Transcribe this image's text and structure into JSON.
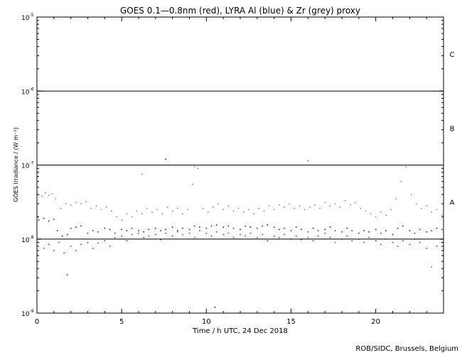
{
  "chart_data": {
    "type": "scatter",
    "title": "GOES 0.1—0.8nm (red), LYRA Al (blue) & Zr (grey) proxy",
    "xlabel": "Time / h UTC, 24 Dec 2018",
    "ylabel": "GOES Irradiance / (W m⁻²)",
    "footer": "ROB/SIDC, Brussels, Belgium",
    "y_scale": "log",
    "xlim": [
      0,
      24
    ],
    "ylim": [
      1e-09,
      1e-05
    ],
    "x_ticks": [
      {
        "value": 0,
        "label": "0"
      },
      {
        "value": 5,
        "label": "5"
      },
      {
        "value": 10,
        "label": "10"
      },
      {
        "value": 15,
        "label": "15"
      },
      {
        "value": 20,
        "label": "20"
      }
    ],
    "y_ticks": [
      {
        "exp": -9,
        "label": "10",
        "sup": "-9"
      },
      {
        "exp": -8,
        "label": "10",
        "sup": "-8"
      },
      {
        "exp": -7,
        "label": "10",
        "sup": "-7"
      },
      {
        "exp": -6,
        "label": "10",
        "sup": "-6"
      },
      {
        "exp": -5,
        "label": "10",
        "sup": "-5"
      }
    ],
    "flare_class_lines": [
      {
        "value": 1e-06,
        "label": "B"
      },
      {
        "value": 1e-07,
        "label": "A"
      },
      {
        "value": 1e-08,
        "label": ""
      }
    ],
    "flare_class_labels": [
      {
        "label": "C",
        "at": 3.16e-06
      },
      {
        "label": "B",
        "at": 3.16e-07
      },
      {
        "label": "A",
        "at": 3.16e-08
      }
    ],
    "series": [
      {
        "name": "GOES 0.1—0.8nm",
        "color": "#ff0000",
        "points": [
          [
            0.1,
            9e-09
          ],
          [
            0.4,
            7.5e-09
          ],
          [
            0.7,
            8.5e-09
          ],
          [
            1,
            7e-09
          ],
          [
            1.3,
            9e-09
          ],
          [
            1.6,
            6.5e-09
          ],
          [
            1.8,
            3.3e-09
          ],
          [
            2,
            8e-09
          ],
          [
            2.3,
            7e-09
          ],
          [
            2.6,
            8.5e-09
          ],
          [
            3,
            9e-09
          ],
          [
            3.3,
            7.5e-09
          ],
          [
            3.6,
            8.8e-09
          ],
          [
            4,
            9.5e-09
          ],
          [
            4.3,
            8e-09
          ],
          [
            4.6,
            1.05e-08
          ],
          [
            5,
            1.1e-08
          ],
          [
            5.3,
            9.5e-09
          ],
          [
            5.6,
            1.15e-08
          ],
          [
            6,
            1.2e-08
          ],
          [
            6.3,
            1.05e-08
          ],
          [
            6.6,
            1.1e-08
          ],
          [
            7,
            1.15e-08
          ],
          [
            7.3,
            9.8e-09
          ],
          [
            7.6,
            1.2e-08
          ],
          [
            8,
            1.1e-08
          ],
          [
            8.3,
            1.25e-08
          ],
          [
            8.6,
            1.15e-08
          ],
          [
            9,
            1.2e-08
          ],
          [
            9.3,
            1.05e-08
          ],
          [
            9.6,
            1.3e-08
          ],
          [
            10,
            1.2e-08
          ],
          [
            10.3,
            1.1e-08
          ],
          [
            10.6,
            1.25e-08
          ],
          [
            11,
            1.15e-08
          ],
          [
            11.3,
            1.2e-08
          ],
          [
            11.6,
            1.05e-08
          ],
          [
            12,
            1.15e-08
          ],
          [
            12.3,
            1.1e-08
          ],
          [
            12.6,
            1.2e-08
          ],
          [
            13,
            1.05e-08
          ],
          [
            13.3,
            1.15e-08
          ],
          [
            13.6,
            9.5e-09
          ],
          [
            14,
            1.1e-08
          ],
          [
            14.3,
            1.05e-08
          ],
          [
            14.6,
            1.15e-08
          ],
          [
            15,
            1e-08
          ],
          [
            15.3,
            1.1e-08
          ],
          [
            15.6,
            9.8e-09
          ],
          [
            16,
            1.05e-08
          ],
          [
            16.3,
            9.5e-09
          ],
          [
            16.6,
            1.1e-08
          ],
          [
            17,
            1.2e-08
          ],
          [
            17.3,
            1.05e-08
          ],
          [
            17.6,
            9e-09
          ],
          [
            18,
            1e-08
          ],
          [
            18.3,
            1.1e-08
          ],
          [
            18.6,
            9.5e-09
          ],
          [
            19,
            1e-08
          ],
          [
            19.3,
            9e-09
          ],
          [
            19.6,
            1.05e-08
          ],
          [
            20,
            9.5e-09
          ],
          [
            20.3,
            8.5e-09
          ],
          [
            20.6,
            1e-08
          ],
          [
            21,
            9e-09
          ],
          [
            21.3,
            8e-09
          ],
          [
            21.6,
            9.5e-09
          ],
          [
            22,
            8.5e-09
          ],
          [
            22.3,
            1e-08
          ],
          [
            22.6,
            9e-09
          ],
          [
            23,
            7.5e-09
          ],
          [
            23.3,
            4.2e-09
          ],
          [
            23.6,
            8e-09
          ],
          [
            23.9,
            9e-09
          ]
        ]
      },
      {
        "name": "LYRA Al",
        "color": "#0000ff",
        "points": [
          [
            0.1,
            1.8e-08
          ],
          [
            0.4,
            1.9e-08
          ],
          [
            0.7,
            1.75e-08
          ],
          [
            1,
            1.85e-08
          ],
          [
            1.2,
            1.3e-08
          ],
          [
            1.5,
            1.1e-08
          ],
          [
            1.8,
            1.15e-08
          ],
          [
            2,
            1.4e-08
          ],
          [
            2.3,
            1.45e-08
          ],
          [
            2.6,
            1.5e-08
          ],
          [
            3,
            1.2e-08
          ],
          [
            3.3,
            1.3e-08
          ],
          [
            3.6,
            1.25e-08
          ],
          [
            4,
            1.4e-08
          ],
          [
            4.3,
            1.35e-08
          ],
          [
            4.6,
            1.2e-08
          ],
          [
            5,
            1.35e-08
          ],
          [
            5.3,
            1.3e-08
          ],
          [
            5.6,
            1.4e-08
          ],
          [
            6,
            1.3e-08
          ],
          [
            6.3,
            1.25e-08
          ],
          [
            6.6,
            1.35e-08
          ],
          [
            7,
            1.4e-08
          ],
          [
            7.3,
            1.3e-08
          ],
          [
            7.6,
            1.35e-08
          ],
          [
            8,
            1.45e-08
          ],
          [
            8.3,
            1.3e-08
          ],
          [
            8.6,
            1.4e-08
          ],
          [
            9,
            1.35e-08
          ],
          [
            9.3,
            1.5e-08
          ],
          [
            9.6,
            1.45e-08
          ],
          [
            10,
            1.4e-08
          ],
          [
            10.3,
            1.5e-08
          ],
          [
            10.6,
            1.55e-08
          ],
          [
            11,
            1.45e-08
          ],
          [
            11.3,
            1.5e-08
          ],
          [
            11.6,
            1.4e-08
          ],
          [
            12,
            1.35e-08
          ],
          [
            12.3,
            1.5e-08
          ],
          [
            12.6,
            1.45e-08
          ],
          [
            13,
            1.4e-08
          ],
          [
            13.3,
            1.5e-08
          ],
          [
            13.6,
            1.55e-08
          ],
          [
            14,
            1.45e-08
          ],
          [
            14.3,
            1.35e-08
          ],
          [
            14.6,
            1.4e-08
          ],
          [
            15,
            1.3e-08
          ],
          [
            15.3,
            1.45e-08
          ],
          [
            15.6,
            1.35e-08
          ],
          [
            16,
            1.25e-08
          ],
          [
            16.3,
            1.4e-08
          ],
          [
            16.6,
            1.3e-08
          ],
          [
            17,
            1.35e-08
          ],
          [
            17.3,
            1.45e-08
          ],
          [
            17.6,
            1.3e-08
          ],
          [
            18,
            1.25e-08
          ],
          [
            18.3,
            1.4e-08
          ],
          [
            18.6,
            1.3e-08
          ],
          [
            19,
            1.2e-08
          ],
          [
            19.3,
            1.3e-08
          ],
          [
            19.6,
            1.25e-08
          ],
          [
            20,
            1.35e-08
          ],
          [
            20.3,
            1.2e-08
          ],
          [
            20.6,
            1.3e-08
          ],
          [
            21,
            1.15e-08
          ],
          [
            21.3,
            1.4e-08
          ],
          [
            21.6,
            1.5e-08
          ],
          [
            22,
            1.3e-08
          ],
          [
            22.3,
            1.2e-08
          ],
          [
            22.6,
            1.35e-08
          ],
          [
            23,
            1.25e-08
          ],
          [
            23.3,
            1.3e-08
          ],
          [
            23.6,
            1.4e-08
          ],
          [
            23.9,
            1.35e-08
          ],
          [
            7.6,
            1.2e-07
          ],
          [
            10.5,
            1.2e-09
          ]
        ]
      },
      {
        "name": "LYRA Zr",
        "color": "#808080",
        "points": [
          [
            0.1,
            4e-08
          ],
          [
            0.3,
            3.8e-08
          ],
          [
            0.5,
            4.2e-08
          ],
          [
            0.7,
            3.9e-08
          ],
          [
            0.9,
            4.1e-08
          ],
          [
            1.1,
            3.5e-08
          ],
          [
            1.4,
            2.6e-08
          ],
          [
            1.7,
            3e-08
          ],
          [
            2,
            2.9e-08
          ],
          [
            2.3,
            3.1e-08
          ],
          [
            2.6,
            3e-08
          ],
          [
            2.9,
            3.2e-08
          ],
          [
            3.2,
            2.6e-08
          ],
          [
            3.5,
            2.8e-08
          ],
          [
            3.8,
            2.5e-08
          ],
          [
            4.1,
            2.7e-08
          ],
          [
            4.4,
            2.4e-08
          ],
          [
            4.7,
            2e-08
          ],
          [
            5,
            1.8e-08
          ],
          [
            5.3,
            2.2e-08
          ],
          [
            5.6,
            2e-08
          ],
          [
            5.9,
            2.4e-08
          ],
          [
            6.2,
            2.2e-08
          ],
          [
            6.5,
            2.6e-08
          ],
          [
            6.8,
            2.3e-08
          ],
          [
            7.1,
            2.5e-08
          ],
          [
            7.4,
            2.2e-08
          ],
          [
            7.7,
            2.7e-08
          ],
          [
            8,
            2.4e-08
          ],
          [
            8.3,
            2.6e-08
          ],
          [
            8.6,
            2.2e-08
          ],
          [
            8.9,
            2.5e-08
          ],
          [
            9.2,
            5.5e-08
          ],
          [
            9.5,
            9e-08
          ],
          [
            9.8,
            2.6e-08
          ],
          [
            10.1,
            2.3e-08
          ],
          [
            10.4,
            2.7e-08
          ],
          [
            10.7,
            3e-08
          ],
          [
            11,
            2.5e-08
          ],
          [
            11.3,
            2.8e-08
          ],
          [
            11.6,
            2.4e-08
          ],
          [
            11.9,
            2.6e-08
          ],
          [
            12.2,
            2.3e-08
          ],
          [
            12.5,
            2.5e-08
          ],
          [
            12.8,
            2.2e-08
          ],
          [
            13.1,
            2.6e-08
          ],
          [
            13.4,
            2.4e-08
          ],
          [
            13.7,
            2.8e-08
          ],
          [
            14,
            2.5e-08
          ],
          [
            14.3,
            2.9e-08
          ],
          [
            14.6,
            2.7e-08
          ],
          [
            14.9,
            3e-08
          ],
          [
            15.2,
            2.6e-08
          ],
          [
            15.5,
            2.8e-08
          ],
          [
            15.8,
            2.5e-08
          ],
          [
            16.1,
            2.7e-08
          ],
          [
            16.4,
            2.9e-08
          ],
          [
            16.7,
            2.6e-08
          ],
          [
            17,
            3.1e-08
          ],
          [
            17.3,
            2.8e-08
          ],
          [
            17.6,
            3e-08
          ],
          [
            17.9,
            2.7e-08
          ],
          [
            18.2,
            3.3e-08
          ],
          [
            18.5,
            2.9e-08
          ],
          [
            18.8,
            3.1e-08
          ],
          [
            19.1,
            2.6e-08
          ],
          [
            19.4,
            2.4e-08
          ],
          [
            19.7,
            2.2e-08
          ],
          [
            20,
            2e-08
          ],
          [
            20.3,
            2.3e-08
          ],
          [
            20.6,
            2.1e-08
          ],
          [
            20.9,
            2.5e-08
          ],
          [
            21.2,
            3.5e-08
          ],
          [
            21.5,
            6e-08
          ],
          [
            21.8,
            9.5e-08
          ],
          [
            22.1,
            4e-08
          ],
          [
            22.4,
            3e-08
          ],
          [
            22.7,
            2.6e-08
          ],
          [
            23,
            2.8e-08
          ],
          [
            23.3,
            2.3e-08
          ],
          [
            23.6,
            2.5e-08
          ],
          [
            23.9,
            2.1e-08
          ],
          [
            6.2,
            7.5e-08
          ],
          [
            16,
            1.15e-07
          ],
          [
            9.3,
            9.5e-08
          ]
        ]
      }
    ]
  }
}
